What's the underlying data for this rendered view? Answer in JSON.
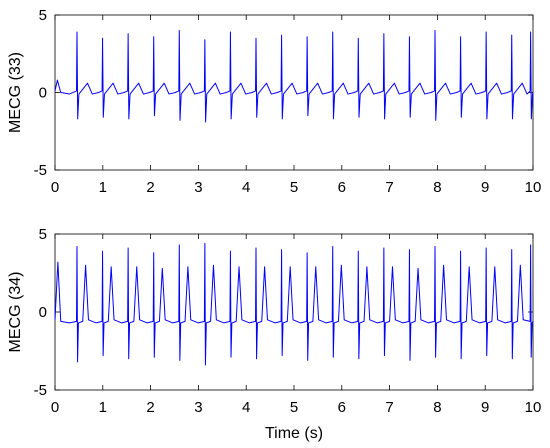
{
  "chart_data": [
    {
      "type": "line",
      "ylabel": "MECG (33)",
      "xlim": [
        0,
        10
      ],
      "ylim": [
        -5,
        5
      ],
      "xticks": [
        0,
        1,
        2,
        3,
        4,
        5,
        6,
        7,
        8,
        9,
        10
      ],
      "yticks": [
        -5,
        0,
        5
      ],
      "x": [
        0,
        0.05,
        0.12,
        0.3,
        0.45,
        0.46,
        0.475,
        0.5,
        0.68,
        0.78,
        0.91,
        0.985,
        0.995,
        1.01,
        1.035,
        1.215,
        1.315,
        1.445,
        1.52,
        1.53,
        1.545,
        1.57,
        1.75,
        1.85,
        1.98,
        2.055,
        2.065,
        2.08,
        2.105,
        2.285,
        2.385,
        2.515,
        2.59,
        2.6,
        2.615,
        2.64,
        2.82,
        2.92,
        3.05,
        3.125,
        3.135,
        3.15,
        3.175,
        3.355,
        3.455,
        3.585,
        3.66,
        3.67,
        3.685,
        3.71,
        3.89,
        3.99,
        4.12,
        4.195,
        4.205,
        4.22,
        4.245,
        4.425,
        4.525,
        4.655,
        4.73,
        4.74,
        4.755,
        4.78,
        4.96,
        5.06,
        5.19,
        5.265,
        5.275,
        5.29,
        5.315,
        5.495,
        5.595,
        5.725,
        5.8,
        5.81,
        5.825,
        5.85,
        6.03,
        6.13,
        6.26,
        6.335,
        6.345,
        6.36,
        6.385,
        6.565,
        6.665,
        6.795,
        6.87,
        6.88,
        6.895,
        6.92,
        7.1,
        7.2,
        7.33,
        7.405,
        7.415,
        7.43,
        7.455,
        7.635,
        7.735,
        7.865,
        7.94,
        7.95,
        7.965,
        7.99,
        8.17,
        8.27,
        8.4,
        8.475,
        8.485,
        8.5,
        8.525,
        8.705,
        8.805,
        8.935,
        9.01,
        9.02,
        9.035,
        9.06,
        9.24,
        9.34,
        9.47,
        9.545,
        9.555,
        9.57,
        9.595,
        9.775,
        9.875,
        9.94,
        9.95,
        9.965,
        9.99,
        10
      ],
      "series": [
        {
          "color": "#0000ff",
          "values": [
            0.1,
            0.8,
            0.0,
            -0.1,
            0.1,
            3.9,
            -1.7,
            -0.1,
            0.6,
            -0.1,
            0.0,
            0.1,
            3.5,
            -1.6,
            -0.1,
            0.6,
            -0.1,
            0.0,
            0.1,
            3.8,
            -1.7,
            -0.1,
            0.6,
            -0.1,
            0.0,
            0.1,
            3.6,
            -1.5,
            -0.1,
            0.6,
            -0.1,
            0.0,
            0.1,
            4.0,
            -1.8,
            -0.1,
            0.6,
            -0.1,
            0.0,
            0.1,
            3.4,
            -1.9,
            -0.1,
            0.6,
            -0.1,
            0.0,
            0.1,
            3.9,
            -1.7,
            -0.1,
            0.6,
            -0.1,
            0.0,
            0.1,
            3.5,
            -1.6,
            -0.1,
            0.6,
            -0.1,
            0.0,
            0.1,
            3.7,
            -1.7,
            -0.1,
            0.6,
            -0.1,
            0.0,
            0.1,
            3.6,
            -1.5,
            -0.1,
            0.6,
            -0.1,
            0.0,
            0.1,
            3.9,
            -1.7,
            -0.1,
            0.6,
            -0.1,
            0.0,
            0.1,
            3.5,
            -1.6,
            -0.1,
            0.6,
            -0.1,
            0.0,
            0.1,
            3.8,
            -1.7,
            -0.1,
            0.6,
            -0.1,
            0.0,
            0.1,
            3.6,
            -1.6,
            -0.1,
            0.6,
            -0.1,
            0.0,
            0.1,
            4.0,
            -1.8,
            -0.1,
            0.6,
            -0.1,
            0.0,
            0.1,
            3.6,
            -1.6,
            -0.1,
            0.6,
            -0.1,
            0.0,
            0.1,
            3.9,
            -1.7,
            -0.1,
            0.6,
            -0.1,
            0.0,
            0.1,
            3.7,
            -1.7,
            -0.1,
            0.6,
            -0.1,
            0.1,
            3.9,
            -1.7,
            -0.1,
            0.0
          ]
        }
      ]
    },
    {
      "type": "line",
      "ylabel": "MECG (34)",
      "xlabel": "Time (s)",
      "xlim": [
        0,
        10
      ],
      "ylim": [
        -5,
        5
      ],
      "xticks": [
        0,
        1,
        2,
        3,
        4,
        5,
        6,
        7,
        8,
        9,
        10
      ],
      "yticks": [
        -5,
        0,
        5
      ],
      "x": [
        0,
        0.06,
        0.12,
        0.3,
        0.45,
        0.46,
        0.472,
        0.49,
        0.58,
        0.64,
        0.7,
        0.86,
        0.985,
        0.995,
        1.007,
        1.025,
        1.115,
        1.175,
        1.235,
        1.395,
        1.52,
        1.53,
        1.542,
        1.56,
        1.65,
        1.71,
        1.77,
        1.93,
        2.055,
        2.065,
        2.077,
        2.095,
        2.185,
        2.245,
        2.305,
        2.465,
        2.59,
        2.6,
        2.612,
        2.63,
        2.72,
        2.78,
        2.84,
        3.0,
        3.125,
        3.135,
        3.147,
        3.165,
        3.255,
        3.315,
        3.375,
        3.535,
        3.66,
        3.67,
        3.682,
        3.7,
        3.79,
        3.85,
        3.91,
        4.07,
        4.195,
        4.205,
        4.217,
        4.235,
        4.325,
        4.385,
        4.445,
        4.605,
        4.73,
        4.74,
        4.752,
        4.77,
        4.86,
        4.92,
        4.98,
        5.14,
        5.265,
        5.275,
        5.287,
        5.305,
        5.395,
        5.455,
        5.515,
        5.675,
        5.8,
        5.81,
        5.822,
        5.84,
        5.93,
        5.99,
        6.05,
        6.21,
        6.335,
        6.345,
        6.357,
        6.375,
        6.465,
        6.525,
        6.585,
        6.745,
        6.87,
        6.88,
        6.892,
        6.91,
        7.0,
        7.06,
        7.12,
        7.28,
        7.405,
        7.415,
        7.427,
        7.445,
        7.535,
        7.595,
        7.655,
        7.815,
        7.94,
        7.95,
        7.962,
        7.98,
        8.07,
        8.13,
        8.19,
        8.35,
        8.475,
        8.485,
        8.497,
        8.515,
        8.605,
        8.665,
        8.725,
        8.885,
        9.01,
        9.02,
        9.032,
        9.05,
        9.14,
        9.2,
        9.26,
        9.42,
        9.545,
        9.555,
        9.567,
        9.585,
        9.675,
        9.735,
        9.795,
        9.94,
        9.95,
        9.962,
        9.98,
        10
      ],
      "series": [
        {
          "color": "#0000ff",
          "values": [
            -0.5,
            3.2,
            -0.6,
            -0.7,
            -0.6,
            4.2,
            -3.2,
            -0.7,
            -0.6,
            3.0,
            -0.5,
            -0.7,
            -0.6,
            3.9,
            -2.8,
            -0.7,
            -0.6,
            2.9,
            -0.5,
            -0.7,
            -0.6,
            4.1,
            -3.0,
            -0.7,
            -0.6,
            2.9,
            -0.5,
            -0.7,
            -0.6,
            3.8,
            -2.9,
            -0.7,
            -0.6,
            2.8,
            -0.5,
            -0.7,
            -0.6,
            4.3,
            -3.1,
            -0.7,
            -0.6,
            2.9,
            -0.5,
            -0.7,
            -0.6,
            4.4,
            -3.4,
            -0.7,
            -0.6,
            3.0,
            -0.5,
            -0.7,
            -0.6,
            3.9,
            -2.9,
            -0.7,
            -0.6,
            2.9,
            -0.5,
            -0.7,
            -0.6,
            4.1,
            -3.0,
            -0.7,
            -0.6,
            2.9,
            -0.5,
            -0.7,
            -0.6,
            4.0,
            -2.8,
            -0.7,
            -0.6,
            2.9,
            -0.5,
            -0.7,
            -0.6,
            3.8,
            -3.1,
            -0.7,
            -0.6,
            2.9,
            -0.5,
            -0.7,
            -0.6,
            4.2,
            -2.9,
            -0.7,
            -0.6,
            3.0,
            -0.5,
            -0.7,
            -0.6,
            3.9,
            -3.0,
            -0.7,
            -0.6,
            2.9,
            -0.5,
            -0.7,
            -0.6,
            4.1,
            -2.8,
            -0.7,
            -0.6,
            2.9,
            -0.5,
            -0.7,
            -0.6,
            4.0,
            -3.1,
            -0.7,
            -0.6,
            2.8,
            -0.5,
            -0.7,
            -0.6,
            4.2,
            -2.9,
            -0.7,
            -0.6,
            3.0,
            -0.5,
            -0.7,
            -0.6,
            3.9,
            -3.0,
            -0.7,
            -0.6,
            2.9,
            -0.5,
            -0.7,
            -0.6,
            4.1,
            -2.8,
            -0.7,
            -0.6,
            2.9,
            -0.5,
            -0.7,
            -0.6,
            4.0,
            -3.0,
            -0.7,
            -0.6,
            3.0,
            -0.5,
            -0.6,
            4.3,
            -2.9,
            -0.7,
            -0.6
          ]
        }
      ]
    }
  ]
}
